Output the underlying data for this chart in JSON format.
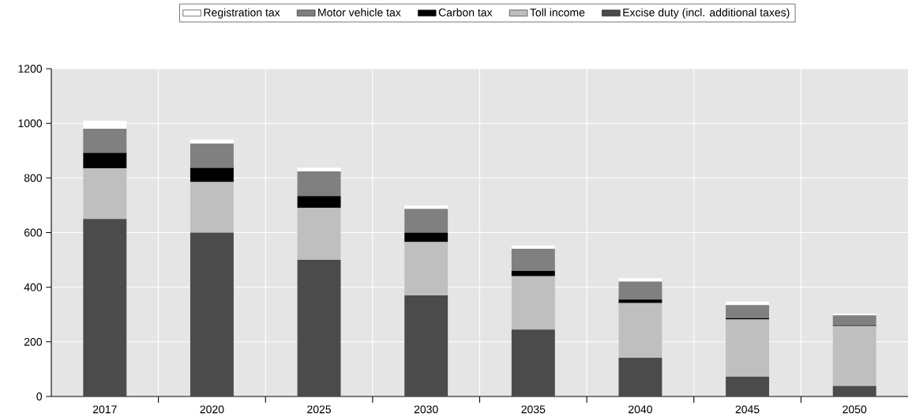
{
  "chart_data": {
    "type": "bar",
    "stacked": true,
    "categories": [
      "2017",
      "2020",
      "2025",
      "2030",
      "2035",
      "2040",
      "2045",
      "2050"
    ],
    "series": [
      {
        "name": "Excise duty (incl. additional taxes)",
        "color": "#4b4b4b",
        "values": [
          650,
          600,
          500,
          370,
          245,
          142,
          72,
          38
        ]
      },
      {
        "name": "Toll income",
        "color": "#bfbfbf",
        "values": [
          185,
          185,
          190,
          195,
          195,
          200,
          210,
          220
        ]
      },
      {
        "name": "Carbon tax",
        "color": "#000000",
        "values": [
          57,
          52,
          44,
          35,
          20,
          13,
          5,
          3
        ]
      },
      {
        "name": "Motor vehicle tax",
        "color": "#808080",
        "values": [
          88,
          89,
          90,
          87,
          81,
          66,
          48,
          36
        ]
      },
      {
        "name": "Registration tax",
        "color": "#ffffff",
        "values": [
          30,
          15,
          14,
          12,
          11,
          12,
          13,
          6
        ]
      }
    ],
    "ylim": [
      0,
      1200
    ],
    "yticks": [
      0,
      200,
      400,
      600,
      800,
      1000,
      1200
    ],
    "grid": true,
    "legend": "top"
  }
}
